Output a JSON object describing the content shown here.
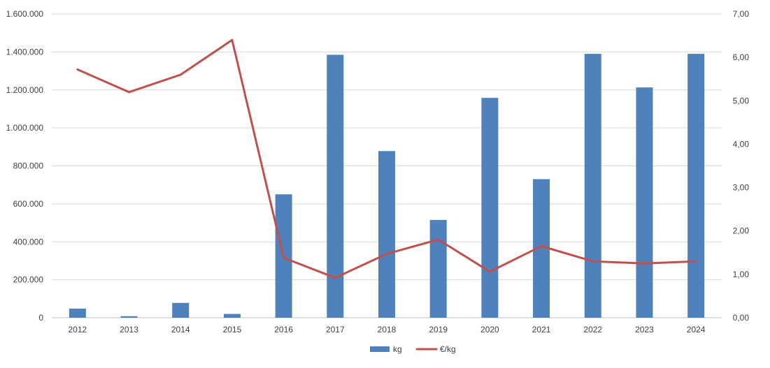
{
  "chart_data": {
    "type": "bar+line",
    "categories": [
      "2012",
      "2013",
      "2014",
      "2015",
      "2016",
      "2017",
      "2018",
      "2019",
      "2020",
      "2021",
      "2022",
      "2023",
      "2024"
    ],
    "series": [
      {
        "name": "kg",
        "type": "bar",
        "axis": "left",
        "color": "#4f81bd",
        "values": [
          48000,
          8000,
          78000,
          20000,
          650000,
          1385000,
          878000,
          515000,
          1158000,
          730000,
          1390000,
          1213000,
          1390000
        ]
      },
      {
        "name": "€/kg",
        "type": "line",
        "axis": "right",
        "color": "#c0504d",
        "values": [
          5.72,
          5.2,
          5.6,
          6.4,
          1.38,
          0.92,
          1.47,
          1.8,
          1.06,
          1.65,
          1.3,
          1.25,
          1.3
        ]
      }
    ],
    "y_left": {
      "range": [
        0,
        1600000
      ],
      "tick_labels": [
        "0",
        "200.000",
        "400.000",
        "600.000",
        "800.000",
        "1.000.000",
        "1.200.000",
        "1.400.000",
        "1.600.000"
      ]
    },
    "y_right": {
      "range": [
        0,
        7
      ],
      "tick_labels": [
        "0,00",
        "1,00",
        "2,00",
        "3,00",
        "4,00",
        "5,00",
        "6,00",
        "7,00"
      ]
    },
    "grid": true,
    "legend_position": "bottom-center"
  }
}
